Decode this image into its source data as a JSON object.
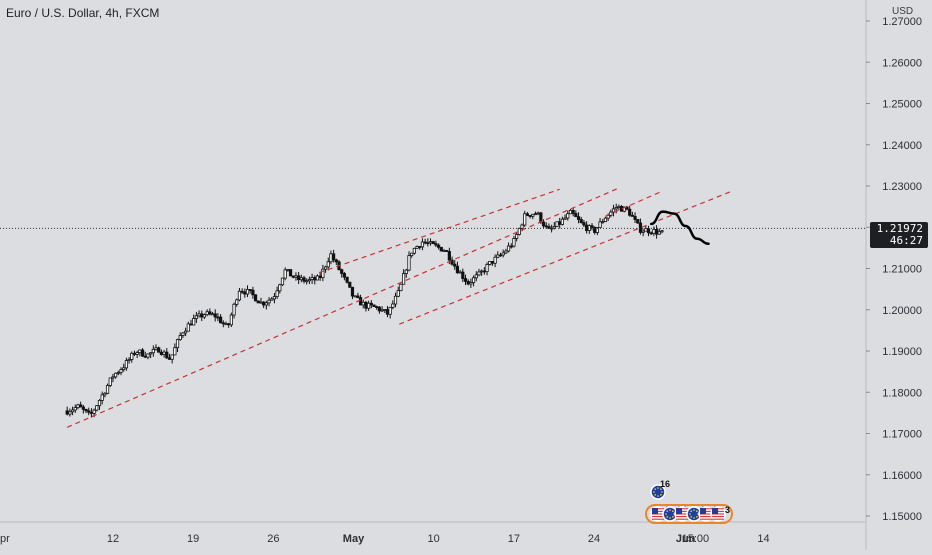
{
  "header": {
    "title": "Euro / U.S. Dollar, 4h, FXCM"
  },
  "price_scale": {
    "unit": "USD",
    "current_price": "1.21972",
    "countdown": "46:27"
  },
  "colors": {
    "background": "#dcdde1",
    "candle": "#111111",
    "channel_lines": "#c83232",
    "projection": "#000000",
    "axis_text": "#2e3036",
    "current_price_line": "#333333"
  },
  "icons": [
    "eu-flag-icon",
    "us-flag-icon"
  ],
  "event_markers": [
    {
      "label": "16",
      "icon": "eu-flag-icon",
      "row": "top",
      "time": "May 29"
    },
    {
      "label": "2",
      "icon": "us-flag-icon",
      "row": "bottom",
      "time": "May 28"
    },
    {
      "label": "12",
      "icon": "eu-flag-icon",
      "row": "bottom",
      "time": "May 29"
    },
    {
      "label": "4",
      "icon": "us-flag-icon",
      "row": "bottom",
      "time": "May 31"
    },
    {
      "label": "9",
      "icon": "eu-flag-icon",
      "row": "bottom",
      "time": "Jun 1"
    },
    {
      "label": "2",
      "icon": "us-flag-icon",
      "row": "bottom",
      "time": "Jun 1"
    },
    {
      "label": "3",
      "icon": "us-flag-icon",
      "row": "bottom",
      "time": "Jun 2"
    }
  ],
  "chart_data": {
    "type": "candlestick",
    "title": "Euro / U.S. Dollar, 4h, FXCM",
    "xlabel": "",
    "ylabel": "USD",
    "x_ticks": [
      "pr",
      "12",
      "19",
      "26",
      "May",
      "10",
      "17",
      "24",
      "Jun",
      "15:00",
      "14"
    ],
    "y_ticks": [
      "1.15000",
      "1.16000",
      "1.17000",
      "1.18000",
      "1.19000",
      "1.20000",
      "1.21000",
      "1.22000",
      "1.23000",
      "1.24000",
      "1.25000",
      "1.26000",
      "1.27000"
    ],
    "ylim": [
      1.1492,
      1.2742
    ],
    "grid": false,
    "price_path": [
      [
        "Apr 8",
        1.1755
      ],
      [
        "Apr 9",
        1.1765
      ],
      [
        "Apr 10",
        1.1742
      ],
      [
        "Apr 11",
        1.179
      ],
      [
        "Apr 12",
        1.184
      ],
      [
        "Apr 13",
        1.1865
      ],
      [
        "Apr 14",
        1.19
      ],
      [
        "Apr 15",
        1.189
      ],
      [
        "Apr 16",
        1.1905
      ],
      [
        "Apr 17",
        1.188
      ],
      [
        "Apr 18",
        1.1945
      ],
      [
        "Apr 19",
        1.1975
      ],
      [
        "Apr 20",
        1.199
      ],
      [
        "Apr 21",
        1.1985
      ],
      [
        "Apr 22",
        1.1955
      ],
      [
        "Apr 23",
        1.205
      ],
      [
        "Apr 24",
        1.204
      ],
      [
        "Apr 25",
        1.2015
      ],
      [
        "Apr 26",
        1.203
      ],
      [
        "Apr 27",
        1.2095
      ],
      [
        "Apr 28",
        1.2075
      ],
      [
        "Apr 29",
        1.207
      ],
      [
        "Apr 30",
        1.2075
      ],
      [
        "May 1",
        1.2135
      ],
      [
        "May 2",
        1.2085
      ],
      [
        "May 3",
        1.203
      ],
      [
        "May 4",
        1.201
      ],
      [
        "May 5",
        1.2005
      ],
      [
        "May 6",
        1.199
      ],
      [
        "May 7",
        1.2045
      ],
      [
        "May 8",
        1.214
      ],
      [
        "May 9",
        1.2165
      ],
      [
        "May 10",
        1.2155
      ],
      [
        "May 11",
        1.2145
      ],
      [
        "May 12",
        1.21
      ],
      [
        "May 13",
        1.2065
      ],
      [
        "May 14",
        1.2085
      ],
      [
        "May 15",
        1.2115
      ],
      [
        "May 16",
        1.2135
      ],
      [
        "May 17",
        1.2165
      ],
      [
        "May 18",
        1.223
      ],
      [
        "May 19",
        1.2235
      ],
      [
        "May 20",
        1.219
      ],
      [
        "May 21",
        1.221
      ],
      [
        "May 22",
        1.2235
      ],
      [
        "May 23",
        1.2205
      ],
      [
        "May 24",
        1.219
      ],
      [
        "May 25",
        1.2225
      ],
      [
        "May 26",
        1.225
      ],
      [
        "May 27",
        1.224
      ],
      [
        "May 28",
        1.2195
      ],
      [
        "May 29",
        1.2192
      ],
      [
        "May 30",
        1.2185
      ]
    ],
    "channel_lines": [
      {
        "from": [
          "Apr 8",
          1.1715
        ],
        "to": [
          "May 26",
          1.2293
        ]
      },
      {
        "from": [
          "Apr 30",
          1.209
        ],
        "to": [
          "May 21",
          1.2292
        ]
      },
      {
        "from": [
          "May 7",
          1.1965
        ],
        "to": [
          "Jun 5",
          1.2287
        ]
      },
      {
        "from": [
          "May 25",
          1.2227
        ],
        "to": [
          "May 30",
          1.2288
        ]
      }
    ],
    "projection": [
      [
        "May 29",
        1.2208
      ],
      [
        "May 30",
        1.2238
      ],
      [
        "May 31",
        1.2233
      ],
      [
        "Jun 1",
        1.2203
      ],
      [
        "Jun 2",
        1.2172
      ],
      [
        "Jun 3",
        1.216
      ]
    ],
    "current_price_level": 1.21972
  }
}
